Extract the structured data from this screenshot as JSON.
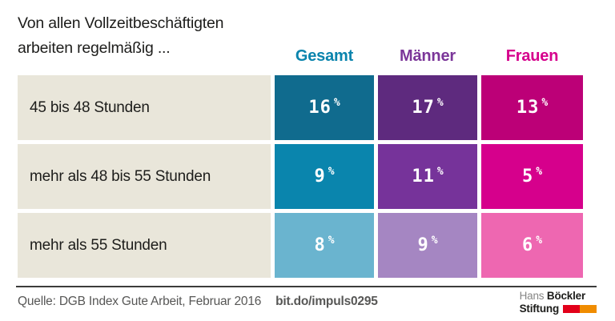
{
  "title": {
    "line1": "Von allen Vollzeitbeschäftigten",
    "line2": "arbeiten regelmäßig ..."
  },
  "columns": [
    {
      "label": "Gesamt"
    },
    {
      "label": "Männer"
    },
    {
      "label": "Frauen"
    }
  ],
  "rows": [
    {
      "label": "45 bis 48 Stunden",
      "cells": [
        {
          "value": "16",
          "unit": "%"
        },
        {
          "value": "17",
          "unit": "%"
        },
        {
          "value": "13",
          "unit": "%"
        }
      ]
    },
    {
      "label": "mehr als 48 bis 55 Stunden",
      "cells": [
        {
          "value": "9",
          "unit": "%"
        },
        {
          "value": "11",
          "unit": "%"
        },
        {
          "value": "5",
          "unit": "%"
        }
      ]
    },
    {
      "label": "mehr als 55 Stunden",
      "cells": [
        {
          "value": "8",
          "unit": "%"
        },
        {
          "value": "9",
          "unit": "%"
        },
        {
          "value": "6",
          "unit": "%"
        }
      ]
    }
  ],
  "colors": {
    "header": [
      "#0a84ad",
      "#7b3699",
      "#d6008c"
    ],
    "label_bg": "#e9e6da",
    "cells": [
      [
        "#106b8e",
        "#5e2a7e",
        "#bc0077"
      ],
      [
        "#0a85ad",
        "#76339a",
        "#d6008c"
      ],
      [
        "#6ab4cf",
        "#a586c2",
        "#ee67b1"
      ]
    ],
    "logo_bar": [
      "#e2001a",
      "#f08c00"
    ]
  },
  "footer": {
    "source": "Quelle: DGB Index Gute Arbeit, Februar 2016",
    "link": "bit.do/impuls0295"
  },
  "logo": {
    "name_thin": "Hans",
    "name_bold": "Böckler",
    "line2_bold": "Stiftung"
  },
  "chart_data": {
    "type": "table",
    "title": "Von allen Vollzeitbeschäftigten arbeiten regelmäßig ...",
    "categories": [
      "45 bis 48 Stunden",
      "mehr als 48 bis 55 Stunden",
      "mehr als 55 Stunden"
    ],
    "series": [
      {
        "name": "Gesamt",
        "values": [
          16,
          9,
          8
        ],
        "unit": "%"
      },
      {
        "name": "Männer",
        "values": [
          17,
          11,
          9
        ],
        "unit": "%"
      },
      {
        "name": "Frauen",
        "values": [
          13,
          5,
          6
        ],
        "unit": "%"
      }
    ],
    "source": "Quelle: DGB Index Gute Arbeit, Februar 2016",
    "legend_position": "top",
    "grid": false
  }
}
